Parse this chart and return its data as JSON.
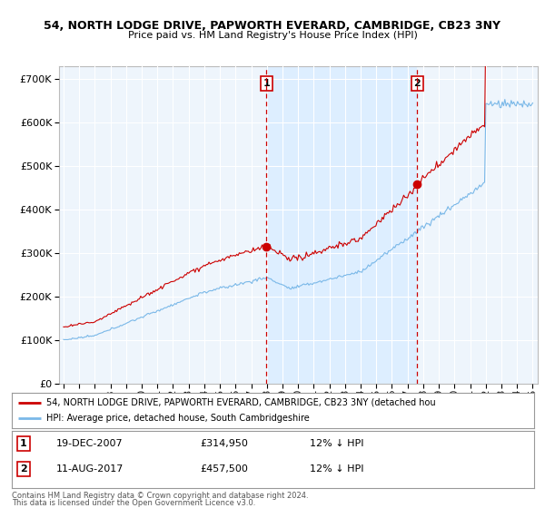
{
  "title1": "54, NORTH LODGE DRIVE, PAPWORTH EVERARD, CAMBRIDGE, CB23 3NY",
  "title2": "Price paid vs. HM Land Registry's House Price Index (HPI)",
  "legend_line1": "54, NORTH LODGE DRIVE, PAPWORTH EVERARD, CAMBRIDGE, CB23 3NY (detached hou",
  "legend_line2": "HPI: Average price, detached house, South Cambridgeshire",
  "annotation1_date": "19-DEC-2007",
  "annotation1_price": "£314,950",
  "annotation1_hpi": "12% ↓ HPI",
  "annotation2_date": "11-AUG-2017",
  "annotation2_price": "£457,500",
  "annotation2_hpi": "12% ↓ HPI",
  "footer1": "Contains HM Land Registry data © Crown copyright and database right 2024.",
  "footer2": "This data is licensed under the Open Government Licence v3.0.",
  "sale1_year": 2007.97,
  "sale1_value": 314950,
  "sale2_year": 2017.61,
  "sale2_value": 457500,
  "hpi_color": "#7ab8e8",
  "price_color": "#cc0000",
  "shade_color": "#ddeeff",
  "bg_color": "#eef5fc"
}
